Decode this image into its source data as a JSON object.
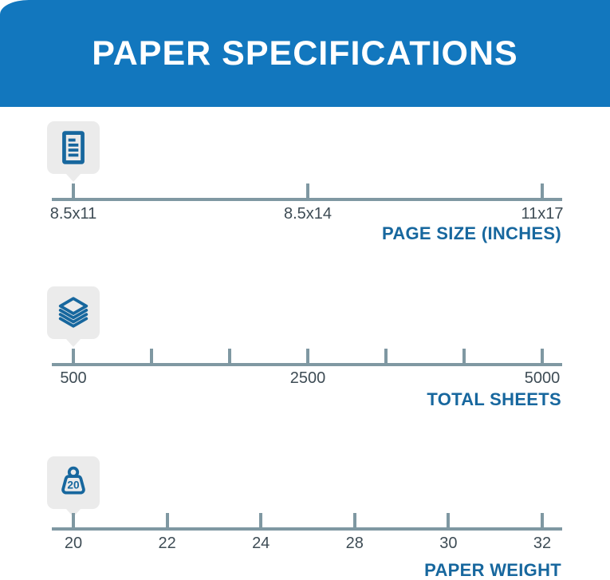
{
  "header": {
    "title": "PAPER SPECIFICATIONS"
  },
  "colors": {
    "banner_blue": "#1277be",
    "accent_blue": "#17679e",
    "scale_line_gray": "#7f98a2",
    "tick_label_gray": "#3e4c55",
    "badge_gray": "#ebebeb",
    "title_text": "#ffffff"
  },
  "icons": [
    "document-icon",
    "paper-stack-icon",
    "weight-icon"
  ],
  "chart_data": [
    {
      "type": "number_line",
      "title": "PAGE SIZE (INCHES)",
      "icon": "document-icon",
      "marker_value": "8.5x11",
      "tick_labels": [
        "8.5x11",
        "8.5x14",
        "11x17"
      ]
    },
    {
      "type": "number_line",
      "title": "TOTAL SHEETS",
      "icon": "paper-stack-icon",
      "marker_value": "500",
      "tick_labels": [
        "500",
        "",
        "",
        "2500",
        "",
        "",
        "5000"
      ]
    },
    {
      "type": "number_line",
      "title": "PAPER WEIGHT",
      "icon": "weight-icon",
      "icon_text": "20",
      "marker_value": "20",
      "tick_labels": [
        "20",
        "22",
        "24",
        "28",
        "30",
        "32"
      ]
    }
  ]
}
